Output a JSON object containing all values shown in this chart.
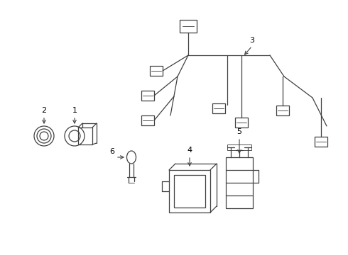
{
  "bg_color": "#ffffff",
  "line_color": "#404040",
  "label_color": "#000000",
  "figsize": [
    4.9,
    3.6
  ],
  "dpi": 100,
  "lw": 0.9
}
